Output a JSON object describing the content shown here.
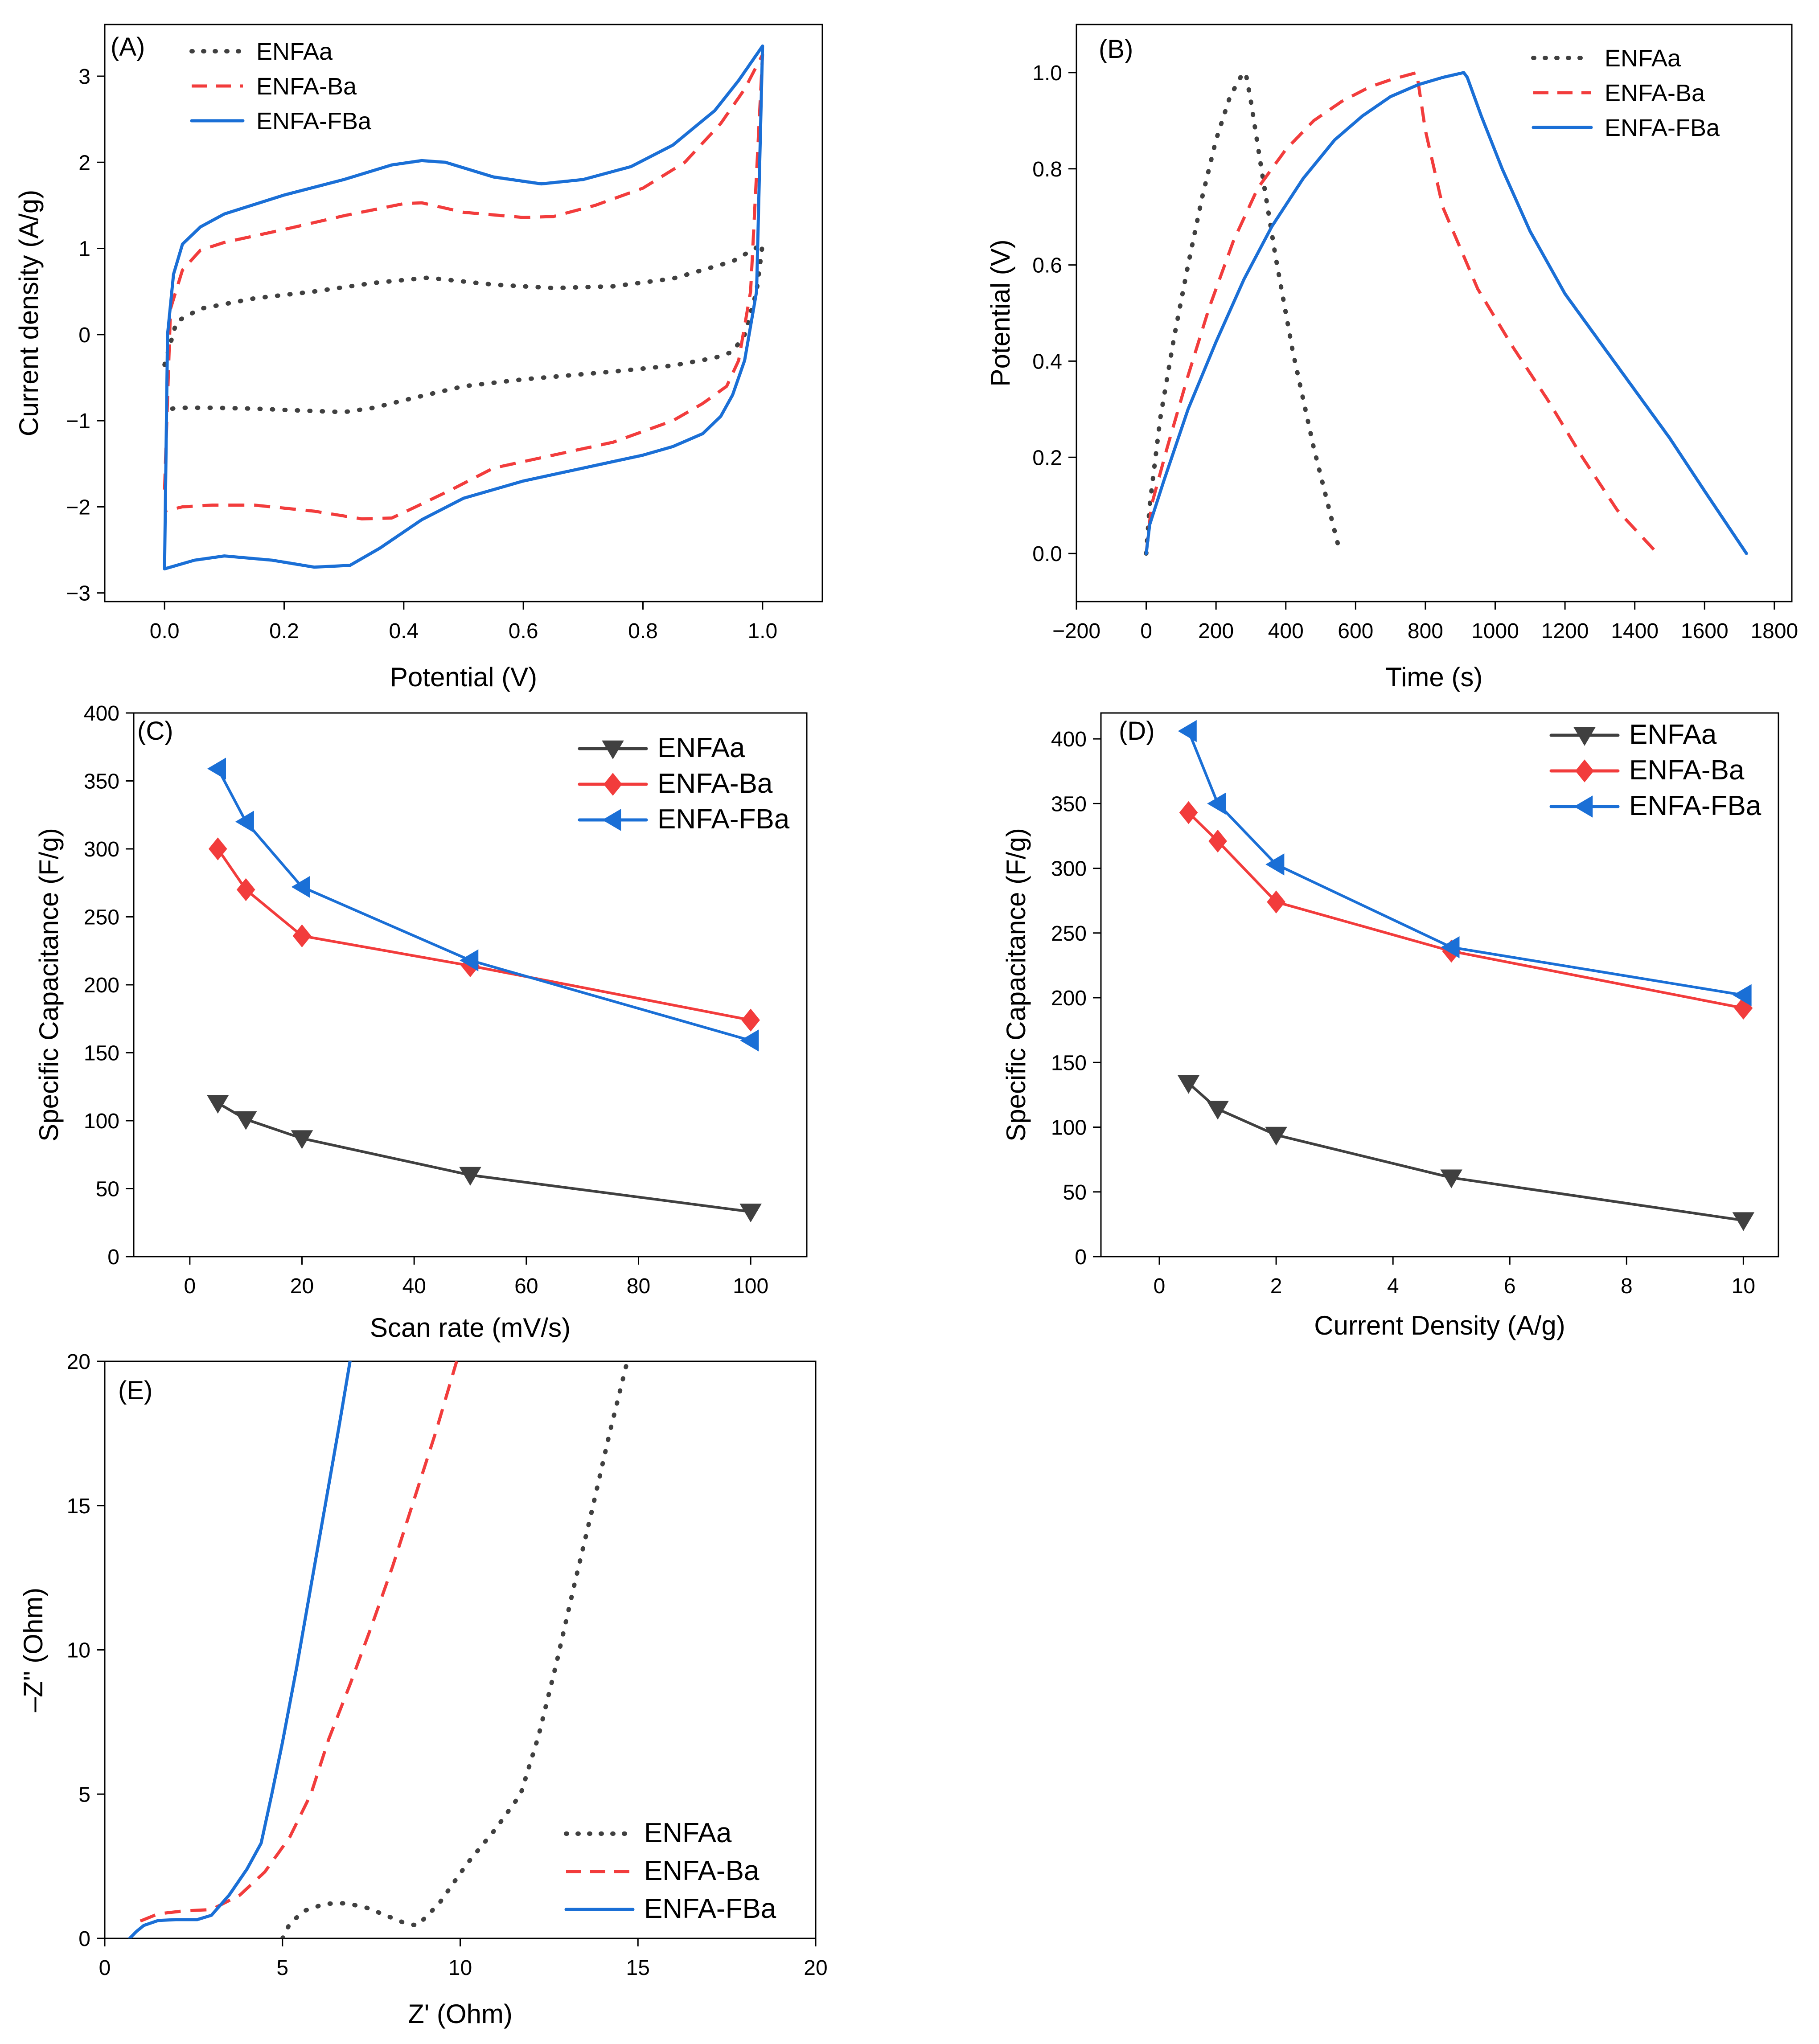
{
  "colors": {
    "ENFAa": "#404040",
    "ENFA-Ba": "#f23c3c",
    "ENFA-FBa": "#1a6fd6"
  },
  "chart_data": [
    {
      "id": "A",
      "panel_label": "(A)",
      "type": "line",
      "title": "",
      "xlabel": "Potential (V)",
      "ylabel": "Current density (A/g)",
      "xlim": [
        -0.1,
        1.1
      ],
      "ylim": [
        -3.1,
        3.6
      ],
      "xticks": [
        0.0,
        0.2,
        0.4,
        0.6,
        0.8,
        1.0
      ],
      "xtick_labels": [
        "0.0",
        "0.2",
        "0.4",
        "0.6",
        "0.8",
        "1.0"
      ],
      "yticks": [
        -3,
        -2,
        -1,
        0,
        1,
        2,
        3
      ],
      "ytick_labels": [
        "−3",
        "−2",
        "−1",
        "0",
        "1",
        "2",
        "3"
      ],
      "legend": "top-left",
      "series": [
        {
          "name": "ENFAa",
          "style": "dotted",
          "x": [
            0.0,
            0.02,
            0.06,
            0.15,
            0.25,
            0.35,
            0.44,
            0.55,
            0.65,
            0.75,
            0.85,
            0.95,
            1.0,
            0.99,
            0.97,
            0.95,
            0.92,
            0.85,
            0.75,
            0.6,
            0.5,
            0.42,
            0.35,
            0.3,
            0.22,
            0.15,
            0.08,
            0.02,
            0.0
          ],
          "y": [
            -0.35,
            0.15,
            0.3,
            0.42,
            0.5,
            0.6,
            0.66,
            0.58,
            0.54,
            0.56,
            0.65,
            0.85,
            1.05,
            0.5,
            0.0,
            -0.2,
            -0.27,
            -0.36,
            -0.43,
            -0.52,
            -0.6,
            -0.73,
            -0.85,
            -0.9,
            -0.88,
            -0.86,
            -0.85,
            -0.85,
            -0.88
          ]
        },
        {
          "name": "ENFA-Ba",
          "style": "dashed",
          "x": [
            0.0,
            0.01,
            0.03,
            0.06,
            0.1,
            0.2,
            0.3,
            0.4,
            0.43,
            0.5,
            0.6,
            0.65,
            0.72,
            0.8,
            0.87,
            0.93,
            0.97,
            1.0,
            0.98,
            0.96,
            0.94,
            0.9,
            0.85,
            0.75,
            0.65,
            0.55,
            0.48,
            0.42,
            0.38,
            0.33,
            0.25,
            0.15,
            0.08,
            0.03,
            0.0
          ],
          "y": [
            -1.8,
            0.3,
            0.75,
            0.98,
            1.07,
            1.22,
            1.38,
            1.52,
            1.53,
            1.42,
            1.36,
            1.37,
            1.5,
            1.7,
            2.0,
            2.45,
            2.85,
            3.25,
            0.5,
            -0.3,
            -0.6,
            -0.8,
            -1.0,
            -1.25,
            -1.4,
            -1.55,
            -1.8,
            -2.0,
            -2.13,
            -2.14,
            -2.05,
            -1.98,
            -1.98,
            -2.0,
            -2.05
          ]
        },
        {
          "name": "ENFA-FBa",
          "style": "solid",
          "x": [
            0.0,
            0.005,
            0.015,
            0.03,
            0.06,
            0.1,
            0.2,
            0.3,
            0.38,
            0.43,
            0.47,
            0.55,
            0.63,
            0.7,
            0.78,
            0.85,
            0.92,
            0.96,
            1.0,
            0.99,
            0.97,
            0.95,
            0.93,
            0.9,
            0.85,
            0.8,
            0.7,
            0.6,
            0.5,
            0.43,
            0.36,
            0.31,
            0.25,
            0.18,
            0.1,
            0.05,
            0.0
          ],
          "y": [
            -2.7,
            0.0,
            0.7,
            1.05,
            1.25,
            1.4,
            1.62,
            1.8,
            1.97,
            2.02,
            2.0,
            1.83,
            1.75,
            1.8,
            1.95,
            2.2,
            2.6,
            2.95,
            3.35,
            0.5,
            -0.3,
            -0.7,
            -0.95,
            -1.15,
            -1.3,
            -1.4,
            -1.55,
            -1.7,
            -1.9,
            -2.15,
            -2.48,
            -2.68,
            -2.7,
            -2.62,
            -2.57,
            -2.62,
            -2.72
          ]
        }
      ]
    },
    {
      "id": "B",
      "panel_label": "(B)",
      "type": "line",
      "title": "",
      "xlabel": "Time (s)",
      "ylabel": "Potential (V)",
      "xlim": [
        -200,
        1850
      ],
      "ylim": [
        -0.1,
        1.1
      ],
      "xticks": [
        -200,
        0,
        200,
        400,
        600,
        800,
        1000,
        1200,
        1400,
        1600,
        1800
      ],
      "xtick_labels": [
        "−200",
        "0",
        "200",
        "400",
        "600",
        "800",
        "1000",
        "1200",
        "1400",
        "1600",
        "1800"
      ],
      "yticks": [
        0.0,
        0.2,
        0.4,
        0.6,
        0.8,
        1.0
      ],
      "ytick_labels": [
        "0.0",
        "0.2",
        "0.4",
        "0.6",
        "0.8",
        "1.0"
      ],
      "legend": "top-right",
      "series": [
        {
          "name": "ENFAa",
          "style": "dotted",
          "x": [
            0,
            10,
            40,
            80,
            120,
            160,
            200,
            240,
            270,
            285,
            300,
            330,
            370,
            420,
            480,
            556
          ],
          "y": [
            0.0,
            0.1,
            0.28,
            0.45,
            0.6,
            0.74,
            0.86,
            0.95,
            0.99,
            1.0,
            0.94,
            0.8,
            0.62,
            0.42,
            0.22,
            0.0
          ]
        },
        {
          "name": "ENFA-Ba",
          "style": "dashed",
          "x": [
            0,
            15,
            60,
            120,
            180,
            250,
            320,
            400,
            480,
            560,
            640,
            700,
            750,
            775,
            800,
            850,
            950,
            1050,
            1150,
            1250,
            1350,
            1465
          ],
          "y": [
            0.0,
            0.1,
            0.22,
            0.37,
            0.51,
            0.65,
            0.76,
            0.84,
            0.9,
            0.94,
            0.97,
            0.985,
            0.995,
            1.0,
            0.88,
            0.72,
            0.55,
            0.43,
            0.32,
            0.2,
            0.09,
            0.0
          ]
        },
        {
          "name": "ENFA-FBa",
          "style": "solid",
          "x": [
            0,
            10,
            50,
            120,
            200,
            280,
            360,
            450,
            540,
            620,
            700,
            780,
            850,
            910,
            920,
            960,
            1020,
            1100,
            1200,
            1300,
            1400,
            1500,
            1600,
            1720
          ],
          "y": [
            0.0,
            0.06,
            0.15,
            0.3,
            0.44,
            0.57,
            0.68,
            0.78,
            0.86,
            0.91,
            0.95,
            0.975,
            0.99,
            1.0,
            0.99,
            0.91,
            0.8,
            0.67,
            0.54,
            0.44,
            0.34,
            0.24,
            0.13,
            0.0
          ]
        }
      ]
    },
    {
      "id": "C",
      "panel_label": "(C)",
      "type": "line",
      "title": "",
      "xlabel": "Scan rate (mV/s)",
      "ylabel": "Specific Capacitance (F/g)",
      "xlim": [
        -10,
        110
      ],
      "ylim": [
        0,
        400
      ],
      "xticks": [
        0,
        20,
        40,
        60,
        80,
        100
      ],
      "xtick_labels": [
        "0",
        "20",
        "40",
        "60",
        "80",
        "100"
      ],
      "yticks": [
        0,
        50,
        100,
        150,
        200,
        250,
        300,
        350,
        400
      ],
      "ytick_labels": [
        "0",
        "50",
        "100",
        "150",
        "200",
        "250",
        "300",
        "350",
        "400"
      ],
      "legend": "top-right",
      "categories": [
        5,
        10,
        20,
        50,
        100
      ],
      "series": [
        {
          "name": "ENFAa",
          "marker": "triangle-down",
          "values": [
            113,
            101,
            87,
            60,
            33
          ]
        },
        {
          "name": "ENFA-Ba",
          "marker": "diamond",
          "values": [
            300,
            270,
            236,
            214,
            174
          ]
        },
        {
          "name": "ENFA-FBa",
          "marker": "triangle-left",
          "values": [
            359,
            320,
            272,
            218,
            159
          ]
        }
      ]
    },
    {
      "id": "D",
      "panel_label": "(D)",
      "type": "line",
      "title": "",
      "xlabel": "Current Density (A/g)",
      "ylabel": "Specific Capacitance (F/g)",
      "xlim": [
        -1,
        10.6
      ],
      "ylim": [
        0,
        420
      ],
      "xticks": [
        0,
        2,
        4,
        6,
        8,
        10
      ],
      "xtick_labels": [
        "0",
        "2",
        "4",
        "6",
        "8",
        "10"
      ],
      "yticks": [
        0,
        50,
        100,
        150,
        200,
        250,
        300,
        350,
        400
      ],
      "ytick_labels": [
        "0",
        "50",
        "100",
        "150",
        "200",
        "250",
        "300",
        "350",
        "400"
      ],
      "legend": "top-right",
      "categories": [
        0.5,
        1,
        2,
        5,
        10
      ],
      "series": [
        {
          "name": "ENFAa",
          "marker": "triangle-down",
          "values": [
            134,
            114,
            94,
            61,
            28
          ]
        },
        {
          "name": "ENFA-Ba",
          "marker": "diamond",
          "values": [
            343,
            321,
            274,
            236,
            192
          ]
        },
        {
          "name": "ENFA-FBa",
          "marker": "triangle-left",
          "values": [
            406,
            350,
            303,
            239,
            202
          ]
        }
      ]
    },
    {
      "id": "E",
      "panel_label": "(E)",
      "type": "line",
      "title": "",
      "xlabel": "Z' (Ohm)",
      "ylabel": "–Z'' (Ohm)",
      "xlim": [
        0,
        20
      ],
      "ylim": [
        0,
        20
      ],
      "xticks": [
        0,
        5,
        10,
        15,
        20
      ],
      "xtick_labels": [
        "0",
        "5",
        "10",
        "15",
        "20"
      ],
      "yticks": [
        0,
        5,
        10,
        15,
        20
      ],
      "ytick_labels": [
        "0",
        "5",
        "10",
        "15",
        "20"
      ],
      "legend": "bottom-right",
      "series": [
        {
          "name": "ENFAa",
          "style": "dotted",
          "x": [
            5.0,
            5.2,
            5.6,
            6.2,
            6.8,
            7.4,
            8.0,
            8.5,
            8.8,
            9.4,
            10.2,
            11.0,
            11.7,
            12.2,
            12.7,
            13.2,
            13.7,
            14.2,
            14.7
          ],
          "y": [
            0.0,
            0.5,
            0.95,
            1.2,
            1.22,
            1.05,
            0.75,
            0.5,
            0.45,
            1.2,
            2.6,
            3.8,
            5.0,
            7.0,
            9.5,
            12.2,
            14.8,
            17.5,
            20.0
          ]
        },
        {
          "name": "ENFA-Ba",
          "style": "dashed",
          "x": [
            1.0,
            1.5,
            2.2,
            3.0,
            3.8,
            4.5,
            5.2,
            5.8,
            6.3,
            6.9,
            7.5,
            8.1,
            8.7,
            9.3,
            9.9
          ],
          "y": [
            0.6,
            0.85,
            0.95,
            1.0,
            1.5,
            2.3,
            3.5,
            5.0,
            6.9,
            8.8,
            10.8,
            12.9,
            15.2,
            17.5,
            20.0
          ]
        },
        {
          "name": "ENFA-FBa",
          "style": "solid",
          "x": [
            0.7,
            0.9,
            1.1,
            1.5,
            2.0,
            2.6,
            3.0,
            3.5,
            4.0,
            4.4,
            4.7,
            5.0,
            5.4,
            5.8,
            6.2,
            6.6,
            6.9
          ],
          "y": [
            0.0,
            0.25,
            0.45,
            0.62,
            0.65,
            0.65,
            0.8,
            1.5,
            2.4,
            3.3,
            5.0,
            6.8,
            9.4,
            12.2,
            15.0,
            17.8,
            20.0
          ]
        }
      ]
    }
  ]
}
